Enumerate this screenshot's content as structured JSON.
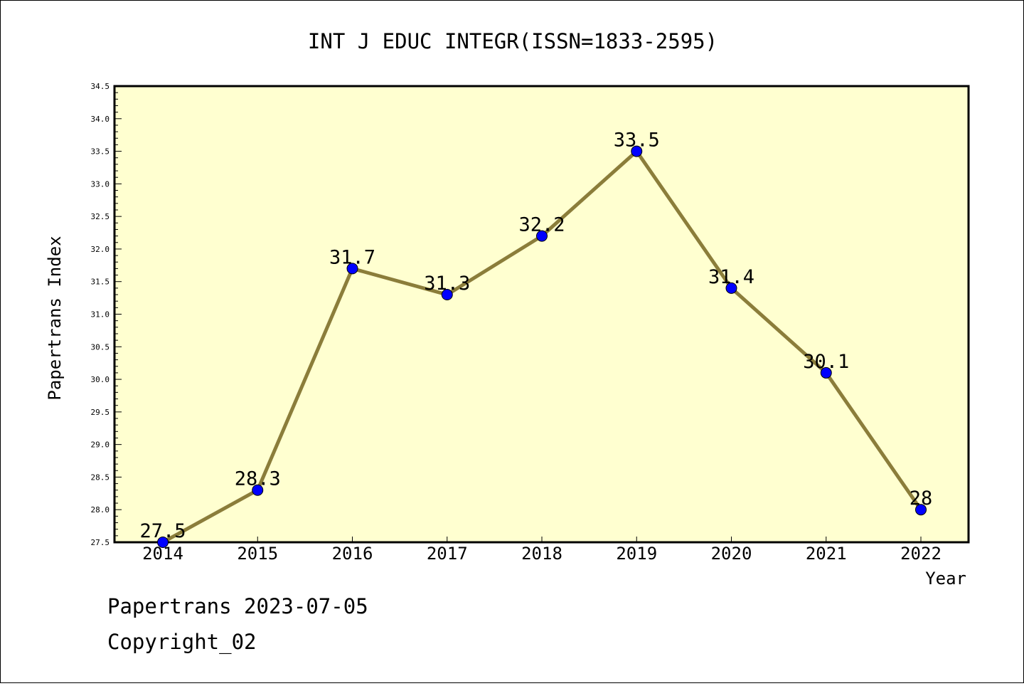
{
  "chart_data": {
    "type": "line",
    "title": "INT J EDUC INTEGR(ISSN=1833-2595)",
    "xlabel": "Year",
    "ylabel": "Papertrans Index",
    "categories": [
      "2014",
      "2015",
      "2016",
      "2017",
      "2018",
      "2019",
      "2020",
      "2021",
      "2022"
    ],
    "series": [
      {
        "values": [
          27.5,
          28.3,
          31.7,
          31.3,
          32.2,
          33.5,
          31.4,
          30.1,
          28.0
        ],
        "labels": [
          "27.5",
          "28.3",
          "31.7",
          "31.3",
          "32.2",
          "33.5",
          "31.4",
          "30.1",
          "28"
        ]
      }
    ],
    "ylim": [
      27.5,
      34.5
    ],
    "yticks": [
      "27.5",
      "28.0",
      "28.5",
      "29.0",
      "29.5",
      "30.0",
      "30.5",
      "31.0",
      "31.5",
      "32.0",
      "32.5",
      "33.0",
      "33.5",
      "34.0",
      "34.5"
    ],
    "grid": false,
    "colors": {
      "plot_background": "#ffffd0",
      "line": "#8b7d3a",
      "marker": "#0000ff"
    }
  },
  "footer": {
    "line1": "Papertrans 2023-07-05",
    "line2": "Copyright_02"
  }
}
